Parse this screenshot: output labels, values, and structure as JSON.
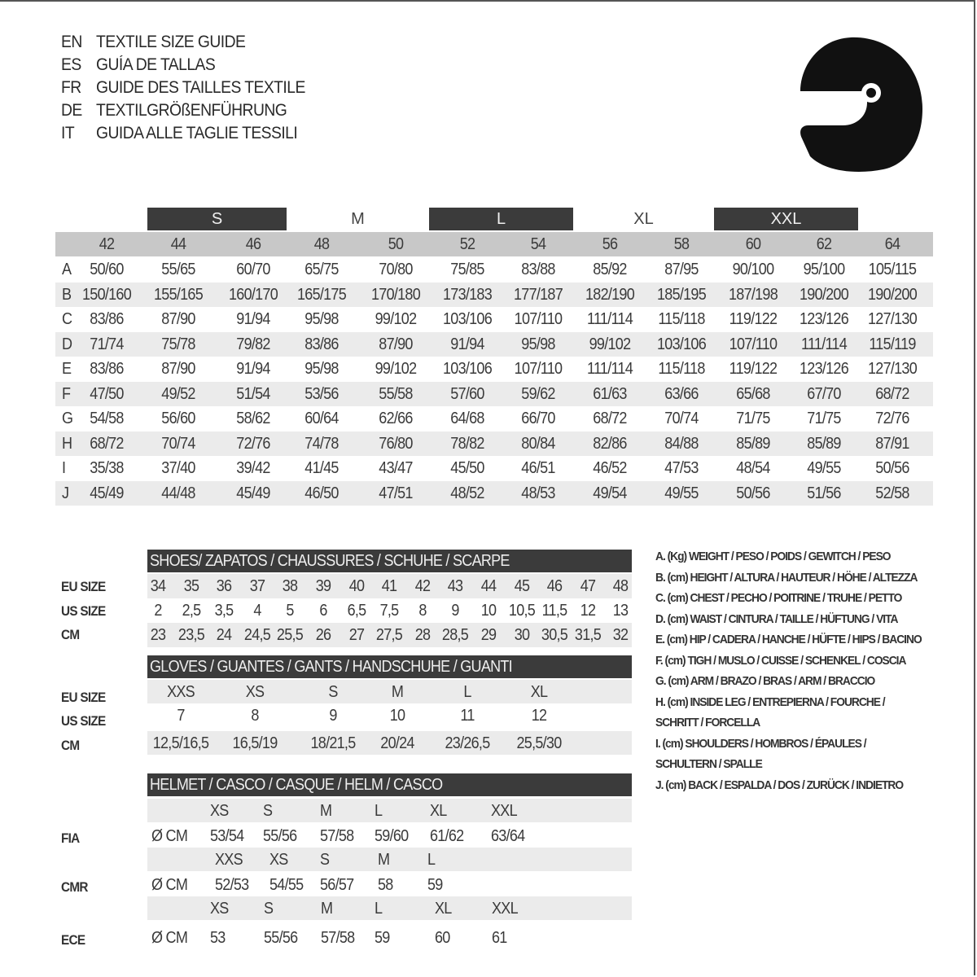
{
  "header": {
    "titles": [
      {
        "lang": "EN",
        "text": "TEXTILE SIZE GUIDE"
      },
      {
        "lang": "ES",
        "text": "GUÍA DE TALLAS"
      },
      {
        "lang": "FR",
        "text": "GUIDE DES TAILLES TEXTILE"
      },
      {
        "lang": "DE",
        "text": "TEXTILGRÖßENFÜHRUNG"
      },
      {
        "lang": "IT",
        "text": "GUIDA ALLE TAGLIE TESSILI"
      }
    ],
    "icon": "helmet-icon"
  },
  "colors": {
    "dark_band": "#3b3b3b",
    "header_row": "#c8c8c8",
    "stripe": "#ebebeb"
  },
  "textile": {
    "size_bands": [
      "S",
      "M",
      "L",
      "XL",
      "XXL"
    ],
    "sizes": [
      "42",
      "44",
      "46",
      "48",
      "50",
      "52",
      "54",
      "56",
      "58",
      "60",
      "62",
      "64"
    ],
    "rows": [
      {
        "label": "A",
        "values": [
          "50/60",
          "55/65",
          "60/70",
          "65/75",
          "70/80",
          "75/85",
          "83/88",
          "85/92",
          "87/95",
          "90/100",
          "95/100",
          "105/115"
        ]
      },
      {
        "label": "B",
        "values": [
          "150/160",
          "155/165",
          "160/170",
          "165/175",
          "170/180",
          "173/183",
          "177/187",
          "182/190",
          "185/195",
          "187/198",
          "190/200",
          "190/200"
        ]
      },
      {
        "label": "C",
        "values": [
          "83/86",
          "87/90",
          "91/94",
          "95/98",
          "99/102",
          "103/106",
          "107/110",
          "111/114",
          "115/118",
          "119/122",
          "123/126",
          "127/130"
        ]
      },
      {
        "label": "D",
        "values": [
          "71/74",
          "75/78",
          "79/82",
          "83/86",
          "87/90",
          "91/94",
          "95/98",
          "99/102",
          "103/106",
          "107/110",
          "111/114",
          "115/119"
        ]
      },
      {
        "label": "E",
        "values": [
          "83/86",
          "87/90",
          "91/94",
          "95/98",
          "99/102",
          "103/106",
          "107/110",
          "111/114",
          "115/118",
          "119/122",
          "123/126",
          "127/130"
        ]
      },
      {
        "label": "F",
        "values": [
          "47/50",
          "49/52",
          "51/54",
          "53/56",
          "55/58",
          "57/60",
          "59/62",
          "61/63",
          "63/66",
          "65/68",
          "67/70",
          "68/72"
        ]
      },
      {
        "label": "G",
        "values": [
          "54/58",
          "56/60",
          "58/62",
          "60/64",
          "62/66",
          "64/68",
          "66/70",
          "68/72",
          "70/74",
          "71/75",
          "71/75",
          "72/76"
        ]
      },
      {
        "label": "H",
        "values": [
          "68/72",
          "70/74",
          "72/76",
          "74/78",
          "76/80",
          "78/82",
          "80/84",
          "82/86",
          "84/88",
          "85/89",
          "85/89",
          "87/91"
        ]
      },
      {
        "label": "I",
        "values": [
          "35/38",
          "37/40",
          "39/42",
          "41/45",
          "43/47",
          "45/50",
          "46/51",
          "46/52",
          "47/53",
          "48/54",
          "49/55",
          "50/56"
        ]
      },
      {
        "label": "J",
        "values": [
          "45/49",
          "44/48",
          "45/49",
          "46/50",
          "47/51",
          "48/52",
          "48/53",
          "49/54",
          "49/55",
          "50/56",
          "51/56",
          "52/58"
        ]
      }
    ]
  },
  "shoes": {
    "title": "SHOES/ ZAPATOS / CHAUSSURES / SCHUHE / SCARPE",
    "rows": [
      {
        "label": "EU SIZE",
        "values": [
          "34",
          "35",
          "36",
          "37",
          "38",
          "39",
          "40",
          "41",
          "42",
          "43",
          "44",
          "45",
          "46",
          "47",
          "48"
        ]
      },
      {
        "label": "US SIZE",
        "values": [
          "2",
          "2,5",
          "3,5",
          "4",
          "5",
          "6",
          "6,5",
          "7,5",
          "8",
          "9",
          "10",
          "10,5",
          "11,5",
          "12",
          "13"
        ]
      },
      {
        "label": "CM",
        "values": [
          "23",
          "23,5",
          "24",
          "24,5",
          "25,5",
          "26",
          "27",
          "27,5",
          "28",
          "28,5",
          "29",
          "30",
          "30,5",
          "31,5",
          "32"
        ]
      }
    ]
  },
  "gloves": {
    "title": "GLOVES / GUANTES / GANTS / HANDSCHUHE / GUANTI",
    "rows": [
      {
        "label": "EU SIZE",
        "values": [
          "XXS",
          "XS",
          "S",
          "M",
          "L",
          "XL"
        ]
      },
      {
        "label": "US SIZE",
        "values": [
          "7",
          "8",
          "9",
          "10",
          "11",
          "12"
        ]
      },
      {
        "label": "CM",
        "values": [
          "12,5/16,5",
          "16,5/19",
          "18/21,5",
          "20/24",
          "23/26,5",
          "25,5/30"
        ]
      }
    ]
  },
  "helmet": {
    "title": "HELMET / CASCO / CASQUE / HELM / CASCO",
    "groups": [
      {
        "label": "FIA",
        "unit": "Ø CM",
        "sizes": [
          "XS",
          "S",
          "M",
          "L",
          "XL",
          "XXL"
        ],
        "values": [
          "53/54",
          "55/56",
          "57/58",
          "59/60",
          "61/62",
          "63/64"
        ]
      },
      {
        "label": "CMR",
        "unit": "Ø CM",
        "sizes": [
          "XXS",
          "XS",
          "S",
          "M",
          "L"
        ],
        "values": [
          "52/53",
          "54/55",
          "56/57",
          "58",
          "59"
        ]
      },
      {
        "label": "ECE",
        "unit": "Ø CM",
        "sizes": [
          "XS",
          "S",
          "M",
          "L",
          "XL",
          "XXL"
        ],
        "values": [
          "53",
          "55/56",
          "57/58",
          "59",
          "60",
          "61"
        ]
      }
    ]
  },
  "legend": [
    "A. (Kg) WEIGHT / PESO / POIDS / GEWITCH / PESO",
    "B. (cm) HEIGHT / ALTURA / HAUTEUR / HÖHE / ALTEZZA",
    "C. (cm) CHEST / PECHO / POITRINE / TRUHE / PETTO",
    "D. (cm) WAIST / CINTURA / TAILLE / HÜFTUNG / VITA",
    "E. (cm) HIP / CADERA / HANCHE / HÜFTE / HIPS /  BACINO",
    "F.  (cm) TIGH / MUSLO / CUISSE / SCHENKEL / COSCIA",
    "G. (cm) ARM  / BRAZO / BRAS / ARM / BRACCIO",
    "H. (cm) INSIDE LEG / ENTREPIERNA / FOURCHE /",
    "SCHRITT / FORCELLA",
    "I.  (cm) SHOULDERS / HOMBROS / ÉPAULES /",
    "SCHULTERN / SPALLE",
    "J. (cm) BACK / ESPALDA / DOS / ZURÜCK / INDIETRO"
  ]
}
